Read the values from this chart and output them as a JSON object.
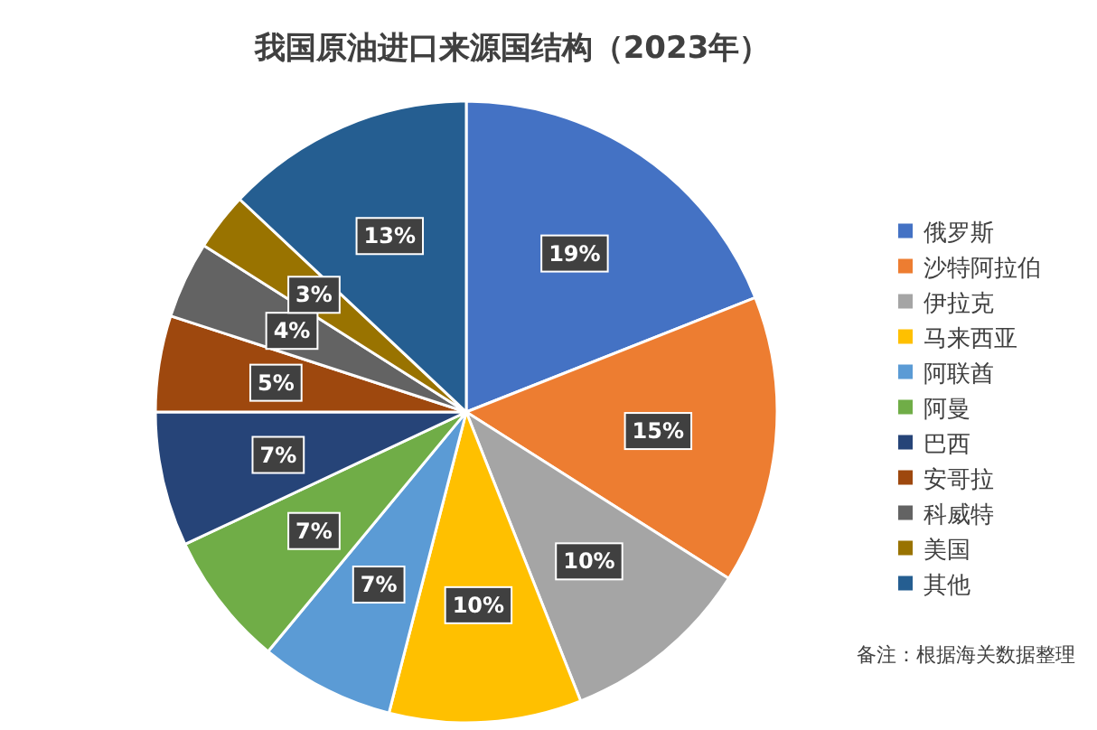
{
  "chart_data": {
    "type": "pie",
    "title": "我国原油进口来源国结构（2023年）",
    "categories": [
      "俄罗斯",
      "沙特阿拉伯",
      "伊拉克",
      "马来西亚",
      "阿联酋",
      "阿曼",
      "巴西",
      "安哥拉",
      "科威特",
      "美国",
      "其他"
    ],
    "values": [
      19,
      15,
      10,
      10,
      7,
      7,
      7,
      5,
      4,
      3,
      13
    ],
    "value_labels": [
      "19%",
      "15%",
      "10%",
      "10%",
      "7%",
      "7%",
      "7%",
      "5%",
      "4%",
      "3%",
      "13%"
    ],
    "colors": [
      "#4472c4",
      "#ed7d31",
      "#a5a5a5",
      "#ffc000",
      "#5b9bd5",
      "#70ad47",
      "#264478",
      "#9e480e",
      "#636363",
      "#997300",
      "#255e91"
    ],
    "legend": "right",
    "annotations": [
      "备注：根据海关数据整理"
    ]
  }
}
